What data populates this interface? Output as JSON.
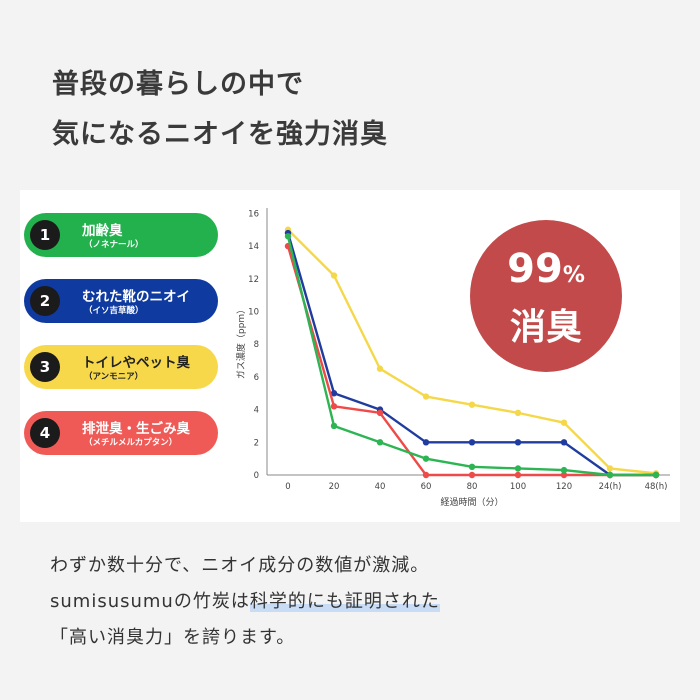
{
  "headline": {
    "line1": "普段の暮らしの中で",
    "line2": "気になるニオイを強力消臭"
  },
  "odors": [
    {
      "num": "1",
      "name": "加齢臭",
      "sub": "（ノネナール）",
      "bg": "#22b14c",
      "text_color": "#ffffff"
    },
    {
      "num": "2",
      "name": "むれた靴のニオイ",
      "sub": "（イソ吉草酸）",
      "bg": "#0f3aa0",
      "text_color": "#ffffff"
    },
    {
      "num": "3",
      "name": "トイレやペット臭",
      "sub": "（アンモニア）",
      "bg": "#f7d84a",
      "text_color": "#222222"
    },
    {
      "num": "4",
      "name": "排泄臭・生ごみ臭",
      "sub": "（メチルメルカプタン）",
      "bg": "#ef5a56",
      "text_color": "#ffffff"
    }
  ],
  "badge": {
    "number": "99",
    "percent": "%",
    "word": "消臭",
    "color": "#c24a4a"
  },
  "chart_data": {
    "type": "line",
    "xlabel": "経過時間（分）",
    "ylabel": "ガス濃度（ppm）",
    "categories": [
      "0",
      "20",
      "40",
      "60",
      "80",
      "100",
      "120",
      "24(h)",
      "48(h)"
    ],
    "ylim": [
      0,
      16
    ],
    "yticks": [
      "0",
      "2",
      "4",
      "6",
      "8",
      "10",
      "12",
      "14",
      "16"
    ],
    "grid": false,
    "series": [
      {
        "color": "#f5d84a",
        "values": [
          15,
          12.2,
          6.5,
          4.8,
          4.3,
          3.8,
          3.2,
          0.4,
          0.1
        ]
      },
      {
        "color": "#1f3c9e",
        "values": [
          14.8,
          5,
          4,
          2,
          2,
          2,
          2,
          0,
          0
        ]
      },
      {
        "color": "#ef4a4a",
        "values": [
          14,
          4.2,
          3.8,
          0,
          0,
          0,
          0,
          0,
          0
        ]
      },
      {
        "color": "#2cb552",
        "values": [
          14.6,
          3,
          2,
          1,
          0.5,
          0.4,
          0.3,
          0,
          0
        ]
      }
    ]
  },
  "body": {
    "line1": "わずか数十分で、ニオイ成分の数値が激減。",
    "line2_pre": "sumisusumuの竹炭は",
    "line2_highlight": "科学的にも証明された",
    "line3": "「高い消臭力」を誇ります。"
  }
}
